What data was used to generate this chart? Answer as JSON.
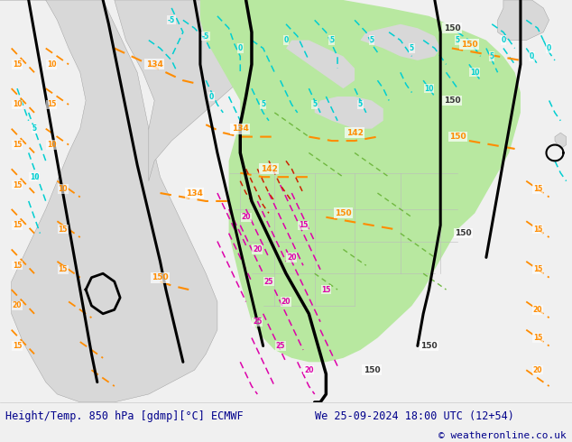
{
  "title_left": "Height/Temp. 850 hPa [gdmp][°C] ECMWF",
  "title_right": "We 25-09-2024 18:00 UTC (12+54)",
  "copyright": "© weatheronline.co.uk",
  "figsize": [
    6.34,
    4.9
  ],
  "dpi": 100,
  "ocean_color": "#f0f0f0",
  "land_gray_color": "#d8d8d8",
  "land_green_color": "#b8e8a0",
  "land_green_dark": "#90d870",
  "z500_color": "#000000",
  "z850_color": "#FF8C00",
  "temp_neg_color": "#00CED1",
  "temp_pos_color": "#FF1493",
  "temp_green_color": "#50b830",
  "border_color": "#aaaaaa",
  "bottom_text_color": "#00008b",
  "bottom_bg": "#ffffff",
  "rain_red_color": "#cc0000",
  "rain_magenta_color": "#cc00cc"
}
